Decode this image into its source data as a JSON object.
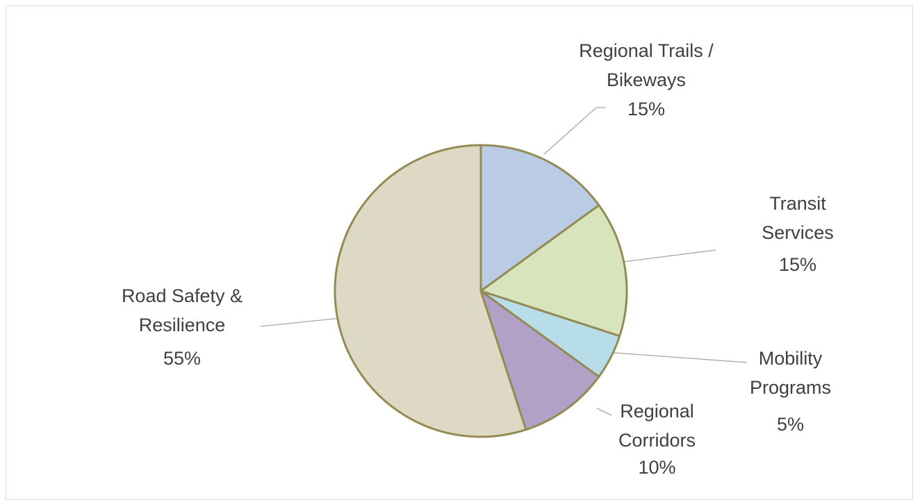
{
  "chart_data": {
    "type": "pie",
    "categories": [
      "Regional Trails / Bikeways",
      "Transit Services",
      "Mobility Programs",
      "Regional Corridors",
      "Road Safety & Resilience"
    ],
    "values": [
      15,
      15,
      5,
      10,
      55
    ],
    "value_labels": [
      "15%",
      "15%",
      "5%",
      "10%",
      "55%"
    ],
    "colors": [
      "#b9cce4",
      "#d8e4bc",
      "#b7dee8",
      "#b2a1c7",
      "#ddd9c4"
    ],
    "edge_color": "#948a54"
  }
}
